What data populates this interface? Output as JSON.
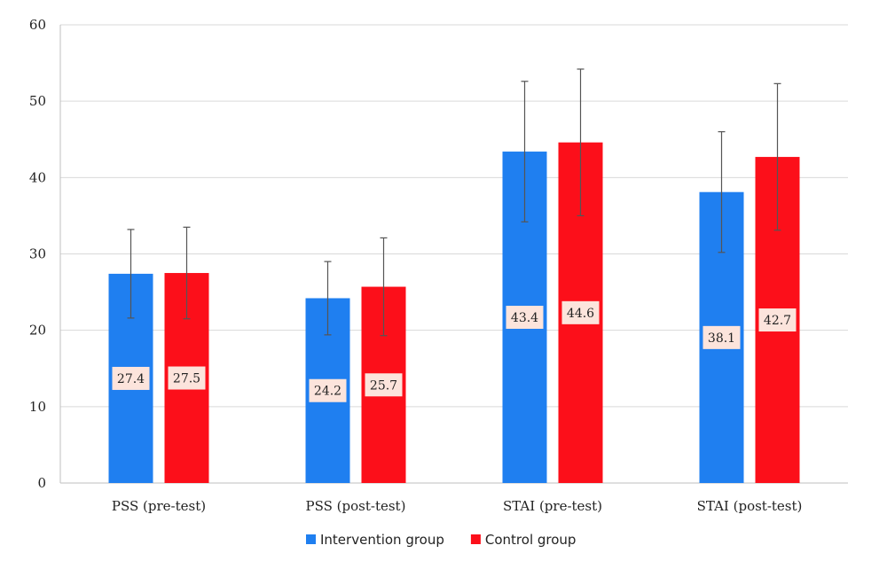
{
  "chart_data": {
    "type": "bar",
    "categories": [
      "PSS (pre-test)",
      "PSS (post-test)",
      "STAI (pre-test)",
      "STAI (post-test)"
    ],
    "series": [
      {
        "name": "Intervention group",
        "color": "#1f7ff0",
        "values": [
          27.4,
          24.2,
          43.4,
          38.1
        ],
        "error": [
          5.8,
          4.8,
          9.2,
          7.9
        ],
        "labels": [
          "27.4",
          "24.2",
          "43.4",
          "38.1"
        ]
      },
      {
        "name": "Control group",
        "color": "#fc0f1a",
        "values": [
          27.5,
          25.7,
          44.6,
          42.7
        ],
        "error": [
          6.0,
          6.4,
          9.6,
          9.6
        ],
        "labels": [
          "27.5",
          "25.7",
          "44.6",
          "42.7"
        ]
      }
    ],
    "ylim": [
      0,
      60
    ],
    "yticks": [
      0,
      10,
      20,
      30,
      40,
      50,
      60
    ],
    "ytick_labels": [
      "0",
      "10",
      "20",
      "30",
      "40",
      "50",
      "60"
    ],
    "grid": true,
    "legend_position": "bottom",
    "data_label_bg": "#fce4dc"
  }
}
